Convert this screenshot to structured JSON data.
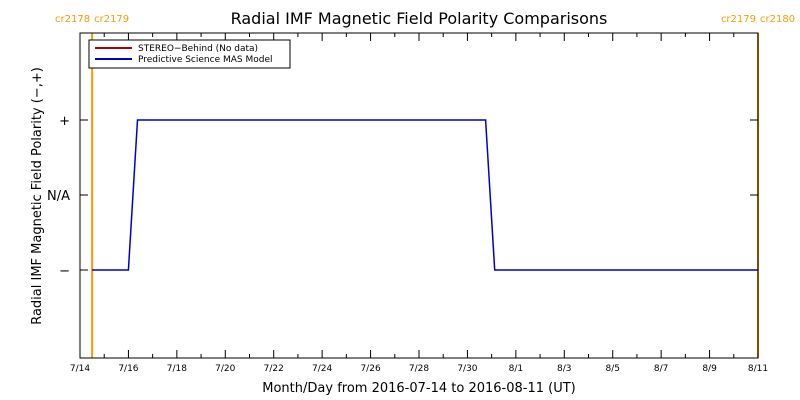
{
  "chart_data": {
    "type": "line",
    "title": "Radial IMF Magnetic Field Polarity Comparisons",
    "xlabel": "Month/Day from 2016-07-14 to 2016-08-11 (UT)",
    "ylabel": "Radial IMF Magnetic Field Polarity (−,+)",
    "x_start": "2016-07-14",
    "x_end": "2016-08-11",
    "x_tick_labels": [
      "7/14",
      "7/16",
      "7/18",
      "7/20",
      "7/22",
      "7/24",
      "7/26",
      "7/28",
      "7/30",
      "8/1",
      "8/3",
      "8/5",
      "8/7",
      "8/9",
      "8/11"
    ],
    "y_tick_labels": [
      "+",
      "N/A",
      "−"
    ],
    "ylim": [
      "−",
      "+"
    ],
    "legend_position": "top-left",
    "grid": false,
    "series": [
      {
        "name": "STEREO−Behind (No data)",
        "color": "#aa0000",
        "points": []
      },
      {
        "name": "Predictive Science MAS Model",
        "color": "#0000cc",
        "points": [
          {
            "x": "2016-07-14T12:00",
            "y": "−"
          },
          {
            "x": "2016-07-16T00:00",
            "y": "−"
          },
          {
            "x": "2016-07-16T09:00",
            "y": "+"
          },
          {
            "x": "2016-07-30T18:00",
            "y": "+"
          },
          {
            "x": "2016-07-31T03:00",
            "y": "−"
          },
          {
            "x": "2016-08-11T00:00",
            "y": "−"
          }
        ]
      }
    ],
    "carrington_markers": [
      {
        "date": "2016-07-14T12:00",
        "left_label": "cr2178",
        "right_label": "cr2179",
        "color": "#ff9900"
      },
      {
        "date": "2016-08-11T00:00",
        "left_label": "cr2179",
        "right_label": "cr2180",
        "color": "#ff9900"
      }
    ]
  }
}
